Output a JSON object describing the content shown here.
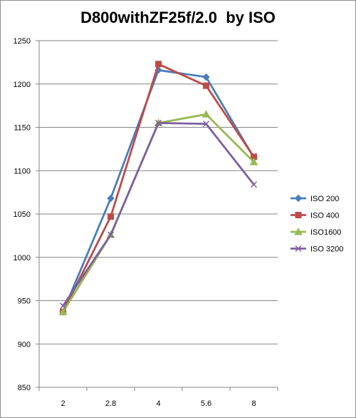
{
  "chart_data": {
    "type": "line",
    "title": "D800withZF25f/2.0  by ISO",
    "xlabel": "",
    "ylabel": "",
    "categories": [
      "2",
      "2.8",
      "4",
      "5.6",
      "8"
    ],
    "ylim": [
      850,
      1250
    ],
    "yticks": [
      850,
      900,
      950,
      1000,
      1050,
      1100,
      1150,
      1200,
      1250
    ],
    "grid": "horizontal",
    "legend_position": "right",
    "series": [
      {
        "name": "ISO 200",
        "color": "#4a7ebb",
        "marker": "diamond",
        "values": [
          937,
          1068,
          1216,
          1208,
          1115
        ]
      },
      {
        "name": "ISO 400",
        "color": "#be4b48",
        "marker": "square",
        "values": [
          937,
          1047,
          1223,
          1198,
          1116
        ]
      },
      {
        "name": "ISO1600",
        "color": "#98b954",
        "marker": "triangle",
        "values": [
          937,
          1026,
          1155,
          1165,
          1110
        ]
      },
      {
        "name": "ISO 3200",
        "color": "#7d60a0",
        "marker": "x",
        "values": [
          944,
          1026,
          1155,
          1154,
          1084
        ]
      }
    ]
  }
}
